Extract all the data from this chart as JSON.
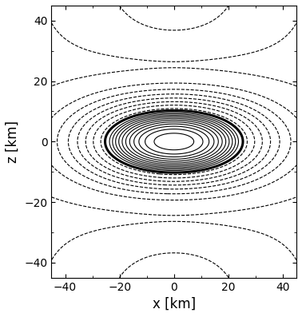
{
  "xlim": [
    -45,
    45
  ],
  "ylim": [
    -45,
    45
  ],
  "xlabel": "x [km]",
  "ylabel": "z [km]",
  "xticks": [
    -40,
    -20,
    0,
    20,
    40
  ],
  "yticks": [
    -40,
    -20,
    0,
    20,
    40
  ],
  "figsize": [
    3.78,
    3.97
  ],
  "dpi": 100,
  "background_color": "#ffffff",
  "a": 0.75,
  "n_inner_contours": 11,
  "n_outer_contours": 8
}
